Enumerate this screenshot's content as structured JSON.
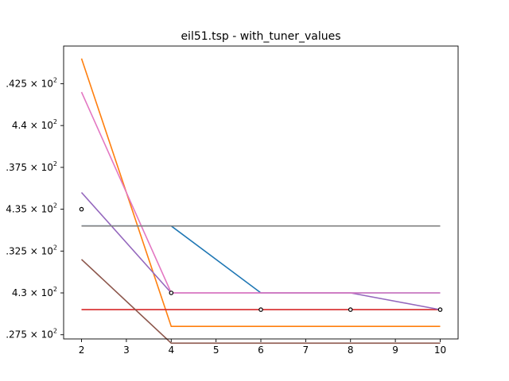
{
  "chart_data": {
    "type": "line",
    "title": "eil51.tsp - with_tuner_values",
    "xlabel": "",
    "ylabel": "",
    "xlim": [
      1.6,
      10.4
    ],
    "ylim": [
      427.25,
      444.75
    ],
    "x_ticks": [
      2,
      3,
      4,
      5,
      6,
      7,
      8,
      9,
      10
    ],
    "x_tick_labels": [
      "2",
      "3",
      "4",
      "5",
      "6",
      "7",
      "8",
      "9",
      "10"
    ],
    "y_ticks": [
      427.5,
      430,
      432.5,
      435,
      437.5,
      440,
      442.5
    ],
    "y_tick_labels": [
      {
        "base": ".275 × 10",
        "exp": "2"
      },
      {
        "base": "4.3 × 10",
        "exp": "2"
      },
      {
        "base": ".325 × 10",
        "exp": "2"
      },
      {
        "base": "4.35 × 10",
        "exp": "2"
      },
      {
        "base": ".375 × 10",
        "exp": "2"
      },
      {
        "base": "4.4 × 10",
        "exp": "2"
      },
      {
        "base": ".425 × 10",
        "exp": "2"
      }
    ],
    "grid": false,
    "series": [
      {
        "color": "#1f77b4",
        "x": [
          2,
          4,
          6,
          8,
          10
        ],
        "y": [
          434,
          434,
          430,
          430,
          430
        ]
      },
      {
        "color": "#ff7f0e",
        "x": [
          2,
          4,
          6,
          8,
          10
        ],
        "y": [
          444,
          428,
          428,
          428,
          428
        ]
      },
      {
        "color": "#d62728",
        "x": [
          2,
          4,
          6,
          8,
          10
        ],
        "y": [
          429,
          429,
          429,
          429,
          429
        ]
      },
      {
        "color": "#9467bd",
        "x": [
          2,
          4,
          6,
          8,
          10
        ],
        "y": [
          436,
          430,
          430,
          430,
          429
        ]
      },
      {
        "color": "#8c564b",
        "x": [
          2,
          4,
          6,
          8,
          10
        ],
        "y": [
          432,
          427,
          427,
          427,
          427
        ]
      },
      {
        "color": "#e377c2",
        "x": [
          2,
          4,
          6,
          8,
          10
        ],
        "y": [
          442,
          430,
          430,
          430,
          430
        ]
      },
      {
        "color": "#7f7f7f",
        "x": [
          2,
          4,
          6,
          8,
          10
        ],
        "y": [
          434,
          434,
          434,
          434,
          434
        ]
      }
    ],
    "markers": {
      "style": "open-circle",
      "color": "#000000",
      "points": [
        {
          "x": 2,
          "y": 435
        },
        {
          "x": 4,
          "y": 430
        },
        {
          "x": 6,
          "y": 429
        },
        {
          "x": 8,
          "y": 429
        },
        {
          "x": 10,
          "y": 429
        }
      ]
    }
  }
}
